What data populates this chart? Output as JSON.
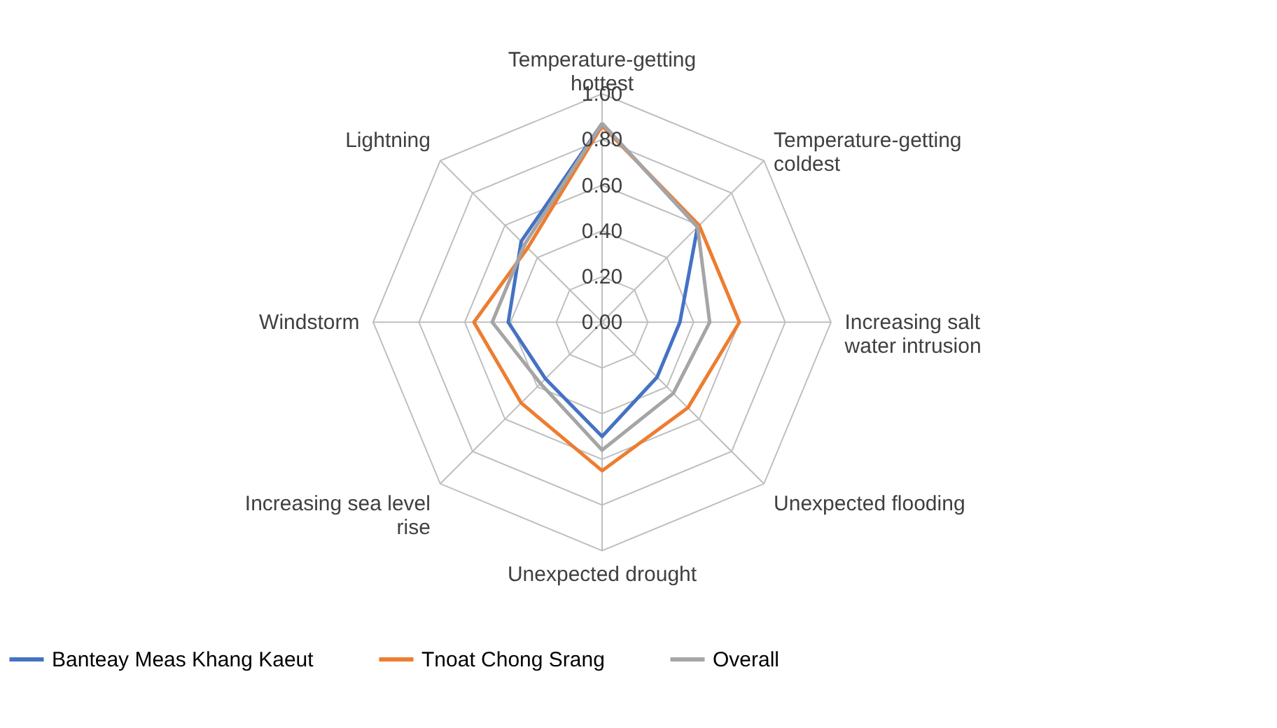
{
  "chart_data": {
    "type": "radar",
    "categories": [
      "Temperature-getting hottest",
      "Temperature-getting coldest",
      "Increasing salt water intrusion",
      "Unexpected flooding",
      "Unexpected drought",
      "Increasing sea level rise",
      "Windstorm",
      "Lightning"
    ],
    "series": [
      {
        "name": "Banteay Meas Khang Kaeut",
        "color": "#4472c4",
        "values": [
          0.87,
          0.59,
          0.34,
          0.34,
          0.5,
          0.35,
          0.41,
          0.5
        ]
      },
      {
        "name": "Tnoat Chong Srang",
        "color": "#ed7d31",
        "values": [
          0.86,
          0.6,
          0.6,
          0.53,
          0.65,
          0.5,
          0.56,
          0.46
        ]
      },
      {
        "name": "Overall",
        "color": "#a5a5a5",
        "values": [
          0.87,
          0.59,
          0.47,
          0.44,
          0.56,
          0.38,
          0.48,
          0.48
        ]
      }
    ],
    "ylim": [
      0,
      1
    ],
    "yticks": [
      {
        "value": 0,
        "label": "0.00"
      },
      {
        "value": 0.2,
        "label": "0.20"
      },
      {
        "value": 0.4,
        "label": "0.40"
      },
      {
        "value": 0.6,
        "label": "0.60"
      },
      {
        "value": 0.8,
        "label": "0.80"
      },
      {
        "value": 1,
        "label": "1.00"
      }
    ],
    "grid": true,
    "legend": "bottom"
  }
}
